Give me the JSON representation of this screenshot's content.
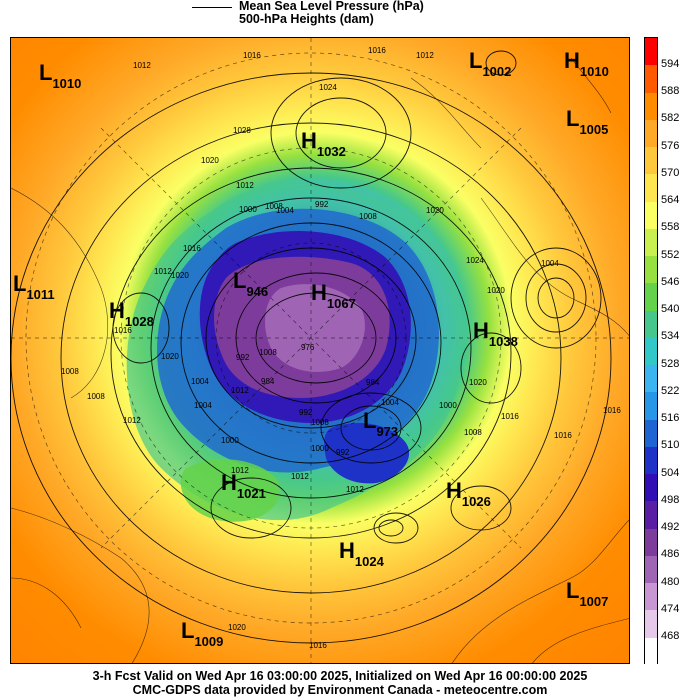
{
  "legend": {
    "mslp_label": "Mean Sea Level Pressure (hPa)",
    "heights_label": "500-hPa Heights (dam)"
  },
  "colorbar": {
    "levels": [
      "594",
      "588",
      "582",
      "576",
      "570",
      "564",
      "558",
      "552",
      "546",
      "540",
      "534",
      "528",
      "522",
      "516",
      "510",
      "504",
      "498",
      "492",
      "486",
      "480",
      "474",
      "468"
    ],
    "colors": [
      "#ff0000",
      "#ff5a00",
      "#ff8c00",
      "#ffa928",
      "#ffc83c",
      "#ffe650",
      "#faff64",
      "#c8f050",
      "#96e140",
      "#64d24a",
      "#46c88c",
      "#32c8c8",
      "#3cb4f0",
      "#2896e6",
      "#1e64d2",
      "#1e32c8",
      "#320fb4",
      "#5a1ea5",
      "#7d3c9b",
      "#a064b4",
      "#c896d2",
      "#e6c8eb",
      "#ffffff"
    ]
  },
  "map": {
    "centers": [
      {
        "type": "L",
        "value": "1010"
      },
      {
        "type": "L",
        "value": "1002"
      },
      {
        "type": "H",
        "value": "1010"
      },
      {
        "type": "L",
        "value": "1005"
      },
      {
        "type": "H",
        "value": "1032"
      },
      {
        "type": "L",
        "value": "1011"
      },
      {
        "type": "H",
        "value": "1028"
      },
      {
        "type": "L",
        "value": "946"
      },
      {
        "type": "H",
        "value": "1067"
      },
      {
        "type": "H",
        "value": "1038"
      },
      {
        "type": "L",
        "value": "973"
      },
      {
        "type": "H",
        "value": "1021"
      },
      {
        "type": "H",
        "value": "1026"
      },
      {
        "type": "H",
        "value": "1024"
      },
      {
        "type": "L",
        "value": "1007"
      },
      {
        "type": "L",
        "value": "1009"
      }
    ],
    "contour_labels": [
      "1012",
      "1016",
      "1016",
      "1012",
      "1024",
      "1028",
      "1020",
      "1012",
      "1008",
      "1000",
      "1004",
      "992",
      "1008",
      "1020",
      "1016",
      "1020",
      "1024",
      "1004",
      "1020",
      "1012",
      "1016",
      "1008",
      "1020",
      "1008",
      "1004",
      "1004",
      "1012",
      "1000",
      "992",
      "1008",
      "1004",
      "1012",
      "1020",
      "1000",
      "1008",
      "1016",
      "1016",
      "1016",
      "1020",
      "1016",
      "1012",
      "1012",
      "1012",
      "1000",
      "1008",
      "992",
      "984",
      "976",
      "992",
      "984"
    ]
  },
  "footer": {
    "line1": "3-h Fcst Valid on Wed Apr 16 03:00:00 2025, Initialized on Wed Apr 16 00:00:00 2025",
    "line2": "CMC-GDPS data provided by Environment Canada - meteocentre.com"
  }
}
